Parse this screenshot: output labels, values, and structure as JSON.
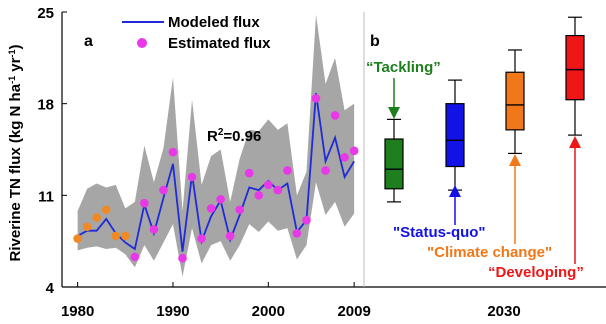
{
  "chart_data": [
    {
      "panel_label": "a",
      "type": "line",
      "ylabel": "Riverine TN flux (kg N ha",
      "ylabel_sup1": "-1",
      "ylabel_mid": " yr",
      "ylabel_sup2": "-1",
      "ylabel_end": ")",
      "ylim": [
        4,
        25
      ],
      "yticks": [
        4,
        11,
        18,
        25
      ],
      "xlim": [
        1979.2,
        2009.3
      ],
      "xticks": [
        1980,
        1990,
        2000,
        2009
      ],
      "annotation": {
        "prefix": "R",
        "sup": "2",
        "suffix": "=0.96"
      },
      "legend": {
        "position": "top-left",
        "modeled_label": "Modeled flux",
        "estimated_label": "Estimated flux"
      },
      "colors": {
        "band": "#a6a6a6",
        "modeled": "#1f2bd6",
        "estimated_early": "#f08a24",
        "estimated": "#e838e8"
      },
      "x": [
        1980,
        1981,
        1982,
        1983,
        1984,
        1985,
        1986,
        1987,
        1988,
        1989,
        1990,
        1991,
        1992,
        1993,
        1994,
        1995,
        1996,
        1997,
        1998,
        1999,
        2000,
        2001,
        2002,
        2003,
        2004,
        2005,
        2006,
        2007,
        2008,
        2009
      ],
      "series": [
        {
          "name": "Modeled flux",
          "values": [
            7.9,
            8.3,
            8.3,
            9.2,
            8.1,
            7.4,
            6.9,
            10.3,
            8.1,
            10.8,
            13.4,
            6.7,
            12.6,
            7.5,
            9.4,
            10.6,
            7.6,
            9.5,
            11.6,
            11.4,
            12.1,
            11.4,
            11.9,
            8.2,
            9.1,
            18.8,
            13.6,
            15.4,
            12.4,
            13.6
          ]
        },
        {
          "name": "Estimated flux",
          "values": [
            7.7,
            8.6,
            9.3,
            9.9,
            7.9,
            7.9,
            6.3,
            10.4,
            8.4,
            11.4,
            14.3,
            6.2,
            12.4,
            7.7,
            10.0,
            10.7,
            7.9,
            9.9,
            12.7,
            11.0,
            11.8,
            11.4,
            12.9,
            8.1,
            9.1,
            18.4,
            12.9,
            17.1,
            13.9,
            14.4
          ]
        }
      ],
      "early_estimated_count": 6,
      "band_lower": [
        6.8,
        7.0,
        7.1,
        6.9,
        7.0,
        6.5,
        5.5,
        7.2,
        6.0,
        7.4,
        8.8,
        4.8,
        8.5,
        5.8,
        7.2,
        7.5,
        6.0,
        7.2,
        8.8,
        8.2,
        9.0,
        8.3,
        8.5,
        6.1,
        7.2,
        12.0,
        9.5,
        10.5,
        8.6,
        9.6
      ],
      "band_upper": [
        9.8,
        11.5,
        11.9,
        11.6,
        11.8,
        10.0,
        10.5,
        14.8,
        12.0,
        14.6,
        20.0,
        9.8,
        18.3,
        11.8,
        14.0,
        14.5,
        10.5,
        13.8,
        16.0,
        15.9,
        16.8,
        16.0,
        16.5,
        11.0,
        12.8,
        24.8,
        19.5,
        21.5,
        17.5,
        18.0
      ]
    },
    {
      "panel_label": "b",
      "type": "box",
      "ylim": [
        4,
        25
      ],
      "xticks_label": [
        "2030"
      ],
      "boxes": [
        {
          "name": "Tackling",
          "label": "“Tackling”",
          "color": "#1e7f1e",
          "whisker_low": 10.5,
          "q1": 11.5,
          "median": 13.0,
          "q3": 15.3,
          "whisker_high": 16.8
        },
        {
          "name": "Status-quo",
          "label": "\"Status-quo\"",
          "color": "#1212e6",
          "whisker_low": 11.4,
          "q1": 13.2,
          "median": 15.2,
          "q3": 18.0,
          "whisker_high": 19.8
        },
        {
          "name": "Climate change",
          "label": "\"Climate change\"",
          "color": "#f07818",
          "whisker_low": 14.2,
          "q1": 16.0,
          "median": 17.9,
          "q3": 20.4,
          "whisker_high": 22.1
        },
        {
          "name": "Developing",
          "label": "“Developing”",
          "color": "#ee1616",
          "whisker_low": 15.6,
          "q1": 18.3,
          "median": 20.6,
          "q3": 23.2,
          "whisker_high": 24.6
        }
      ]
    }
  ]
}
